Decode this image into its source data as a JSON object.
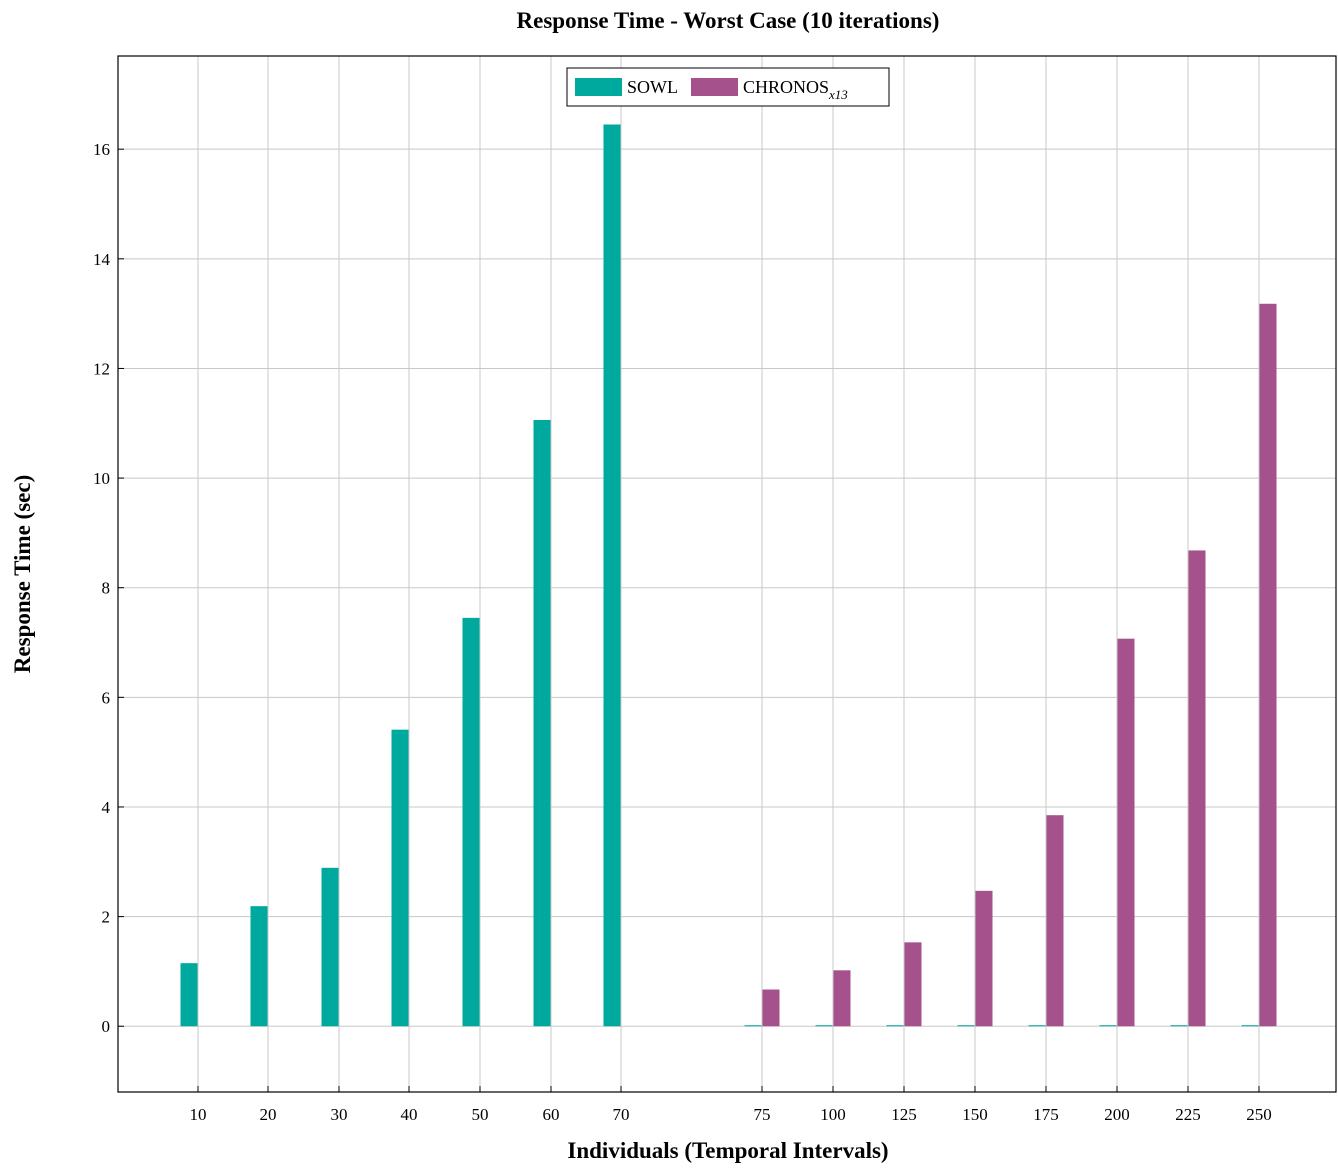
{
  "chart_data": {
    "type": "bar",
    "title": "Response Time - Worst Case (10 iterations)",
    "xlabel": "Individuals (Temporal Intervals)",
    "ylabel": "Response Time (sec)",
    "categories": [
      "10",
      "20",
      "30",
      "40",
      "50",
      "60",
      "70",
      "75",
      "100",
      "125",
      "150",
      "175",
      "200",
      "225",
      "250"
    ],
    "ylim": [
      -1.2,
      17.7
    ],
    "yticks": [
      0,
      2,
      4,
      6,
      8,
      10,
      12,
      14,
      16
    ],
    "grid": true,
    "legend_position": "top-center",
    "series": [
      {
        "name": "SOWL",
        "color": "#00a99d",
        "values": [
          1.15,
          2.19,
          2.89,
          5.41,
          7.45,
          11.06,
          16.45,
          0,
          0,
          0,
          0,
          0,
          0,
          0,
          0
        ]
      },
      {
        "name": "CHRONOS",
        "name_subscript": "x13",
        "color": "#a5528c",
        "values": [
          null,
          null,
          null,
          null,
          null,
          null,
          null,
          0.67,
          1.02,
          1.53,
          2.47,
          3.85,
          7.07,
          8.68,
          13.18
        ]
      }
    ]
  }
}
